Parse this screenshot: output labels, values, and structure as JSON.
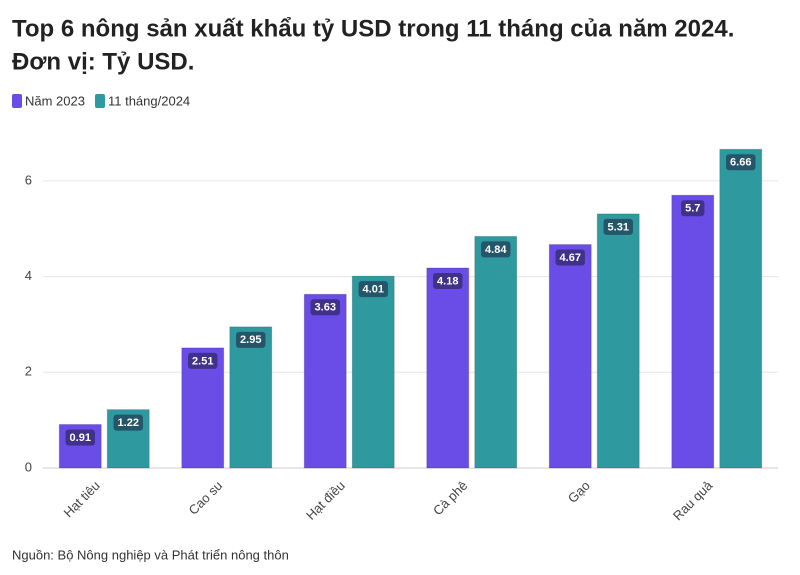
{
  "chart_data": {
    "type": "bar",
    "title": "Top 6 nông sản xuất khẩu tỷ USD trong 11 tháng của năm 2024.",
    "subtitle": "Đơn vị: Tỷ USD.",
    "categories": [
      "Hạt tiêu",
      "Cao su",
      "Hạt điều",
      "Cà phê",
      "Gạo",
      "Rau quả"
    ],
    "series": [
      {
        "name": "Năm 2023",
        "color": "#6a4ce6",
        "values": [
          0.91,
          2.51,
          3.63,
          4.18,
          4.67,
          5.7
        ]
      },
      {
        "name": "11 tháng/2024",
        "color": "#2e9aa0",
        "values": [
          1.22,
          2.95,
          4.01,
          4.84,
          5.31,
          6.66
        ]
      }
    ],
    "ylim": [
      0,
      7
    ],
    "yticks": [
      0,
      2,
      4,
      6
    ],
    "grid": true,
    "source": "Nguồn: Bộ Nông nghiệp và Phát triển nông thôn"
  }
}
